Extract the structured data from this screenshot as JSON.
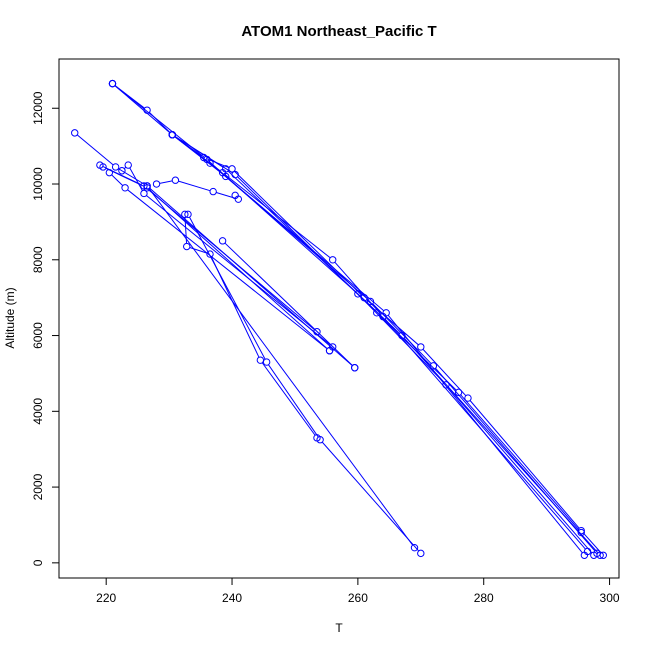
{
  "chart_data": {
    "type": "scatter",
    "title": "ATOM1 Northeast_Pacific T",
    "xlabel": "T",
    "ylabel": "Altitude (m)",
    "xlim": [
      212.5,
      301.5
    ],
    "ylim": [
      -400,
      13300
    ],
    "xticks": [
      "220",
      "240",
      "260",
      "280",
      "300"
    ],
    "yticks": [
      "0",
      "2000",
      "4000",
      "6000",
      "8000",
      "10000",
      "12000"
    ],
    "grid": false,
    "color": "#0000ff",
    "series": [
      {
        "values": [
          [
            221,
            12650
          ],
          [
            226.5,
            11950
          ],
          [
            230.5,
            11300
          ],
          [
            235.5,
            10700
          ],
          [
            240,
            10400
          ],
          [
            261,
            7000
          ],
          [
            270,
            5700
          ],
          [
            277.5,
            4350
          ],
          [
            295.5,
            850
          ],
          [
            299,
            200
          ]
        ]
      },
      {
        "values": [
          [
            221,
            12650
          ],
          [
            230.5,
            11300
          ],
          [
            239,
            10200
          ],
          [
            264.5,
            6600
          ],
          [
            296,
            200
          ]
        ]
      },
      {
        "values": [
          [
            221,
            12650
          ],
          [
            236,
            10650
          ],
          [
            260,
            7100
          ],
          [
            274,
            4700
          ],
          [
            297.5,
            200
          ]
        ]
      },
      {
        "values": [
          [
            230.5,
            11300
          ],
          [
            236.5,
            10550
          ],
          [
            262,
            6900
          ],
          [
            272,
            5200
          ],
          [
            298,
            250
          ]
        ]
      },
      {
        "values": [
          [
            230.5,
            11300
          ],
          [
            240.5,
            10250
          ],
          [
            263,
            6600
          ],
          [
            276,
            4500
          ],
          [
            295.5,
            800
          ]
        ]
      },
      {
        "values": [
          [
            230.5,
            11300
          ],
          [
            239,
            10400
          ],
          [
            267,
            6000
          ],
          [
            298.5,
            200
          ]
        ]
      },
      {
        "values": [
          [
            230.5,
            11300
          ],
          [
            238.5,
            10300
          ],
          [
            256,
            8000
          ],
          [
            264,
            6500
          ],
          [
            296.5,
            300
          ]
        ]
      },
      {
        "values": [
          [
            215,
            11350
          ],
          [
            221.5,
            10450
          ],
          [
            226.5,
            9950
          ],
          [
            259.5,
            5150
          ]
        ]
      },
      {
        "values": [
          [
            219,
            10500
          ],
          [
            226,
            9950
          ],
          [
            253.5,
            6100
          ]
        ]
      },
      {
        "values": [
          [
            219.5,
            10450
          ],
          [
            226.5,
            9900
          ],
          [
            255.5,
            5600
          ]
        ]
      },
      {
        "values": [
          [
            220.5,
            10300
          ],
          [
            223,
            9900
          ],
          [
            255.5,
            5600
          ]
        ]
      },
      {
        "values": [
          [
            222.5,
            10350
          ],
          [
            223.5,
            10500
          ],
          [
            226,
            9750
          ],
          [
            256,
            5700
          ]
        ]
      },
      {
        "values": [
          [
            228,
            10000
          ],
          [
            231,
            10100
          ],
          [
            237,
            9800
          ],
          [
            241,
            9600
          ],
          [
            240.5,
            9700
          ]
        ]
      },
      {
        "values": [
          [
            232.5,
            9200
          ],
          [
            232.8,
            8350
          ],
          [
            236.5,
            8150
          ],
          [
            244.5,
            5350
          ],
          [
            253.5,
            3300
          ]
        ]
      },
      {
        "values": [
          [
            233,
            9200
          ],
          [
            245.5,
            5300
          ],
          [
            254,
            3250
          ],
          [
            270,
            250
          ]
        ]
      },
      {
        "values": [
          [
            238.5,
            8500
          ],
          [
            259.5,
            5150
          ]
        ]
      },
      {
        "values": [
          [
            226.5,
            9950
          ],
          [
            269,
            400
          ]
        ]
      }
    ]
  }
}
